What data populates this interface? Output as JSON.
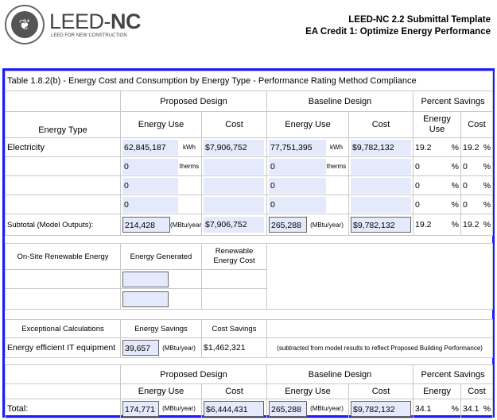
{
  "header": {
    "logo_text": "LEED-NC",
    "logo_sub": "LEED FOR NEW CONSTRUCTION",
    "logo_seal": "U.S. GREEN BUILDING COUNCIL",
    "title1": "LEED-NC 2.2 Submittal Template",
    "title2": "EA Credit 1: Optimize Energy Performance"
  },
  "table": {
    "title": "Table 1.8.2(b) - Energy Cost and Consumption by Energy Type - Performance Rating Method Compliance",
    "groups": {
      "proposed": "Proposed Design",
      "baseline": "Baseline Design",
      "savings": "Percent Savings"
    },
    "cols": {
      "type": "Energy Type",
      "use": "Energy Use",
      "cost": "Cost",
      "sav_use": "Energy Use",
      "sav_cost": "Cost"
    },
    "rows": [
      {
        "type": "Electricity",
        "p_use": "62,845,187",
        "unit": "kWh",
        "p_cost": "$7,906,752",
        "b_use": "77,751,395",
        "b_unit": "kWh",
        "b_cost": "$9,782,132",
        "s_use": "19.2",
        "s_cost": "19.2"
      },
      {
        "type": "",
        "p_use": "0",
        "unit": "therms",
        "p_cost": "",
        "b_use": "0",
        "b_unit": "therms",
        "b_cost": "",
        "s_use": "0",
        "s_cost": "0"
      },
      {
        "type": "",
        "p_use": "0",
        "unit": "",
        "p_cost": "",
        "b_use": "0",
        "b_unit": "",
        "b_cost": "",
        "s_use": "0",
        "s_cost": "0"
      },
      {
        "type": "",
        "p_use": "0",
        "unit": "",
        "p_cost": "",
        "b_use": "0",
        "b_unit": "",
        "b_cost": "",
        "s_use": "0",
        "s_cost": "0"
      }
    ],
    "pct": "%",
    "subtotal": {
      "label": "Subtotal (Model Outputs):",
      "p_use": "214,428",
      "unit": "(MBtu/year)",
      "p_cost": "$7,906,752",
      "b_use": "265,288",
      "b_cost": "$9,782,132",
      "s_use": "19.2",
      "s_cost": "19.2"
    },
    "renewable": {
      "label": "On-Site Renewable Energy",
      "generated": "Energy Generated",
      "cost": "Renewable Energy Cost"
    },
    "exceptional": {
      "label": "Exceptional Calculations",
      "savings": "Energy Savings",
      "cost_savings": "Cost Savings",
      "item": "Energy efficient IT equipment",
      "item_savings": "39,657",
      "unit": "(MBtu/year)",
      "item_cost": "$1,462,321",
      "note": "(subtracted from model results to reflect Proposed Building Performance)"
    },
    "total": {
      "label": "Total:",
      "energy": "Energy",
      "p_use": "174,771",
      "unit": "(MBtu/year)",
      "p_cost": "$6,444,431",
      "b_use": "265,288",
      "b_cost": "$9,782,132",
      "s_use": "34.1",
      "s_cost": "34.1"
    }
  }
}
